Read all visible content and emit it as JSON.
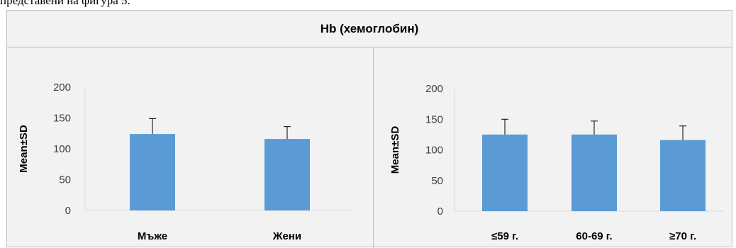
{
  "header_text": "представени на фигура 5.",
  "figure_title": "Hb (хемоглобин)",
  "colors": {
    "bar": "#5b9bd5",
    "error_bar": "#000000",
    "background": "#f2f2f2",
    "axis": "#d9d9d9"
  },
  "chart_data": [
    {
      "type": "bar",
      "title": "",
      "xlabel": "",
      "ylabel": "Mean±SD",
      "ylim": [
        0,
        200
      ],
      "yticks": [
        "0",
        "50",
        "100",
        "150",
        "200"
      ],
      "categories": [
        "Мъже",
        "Жени"
      ],
      "values": [
        124,
        116
      ],
      "error_sd": [
        25,
        20
      ],
      "grid": false
    },
    {
      "type": "bar",
      "title": "",
      "xlabel": "",
      "ylabel": "Mean±SD",
      "ylim": [
        0,
        200
      ],
      "yticks": [
        "0",
        "50",
        "100",
        "150",
        "200"
      ],
      "categories": [
        "≤59 г.",
        "60-69 г.",
        "≥70 г."
      ],
      "values": [
        125,
        125,
        116
      ],
      "error_sd": [
        25,
        22,
        23
      ],
      "grid": false
    }
  ]
}
